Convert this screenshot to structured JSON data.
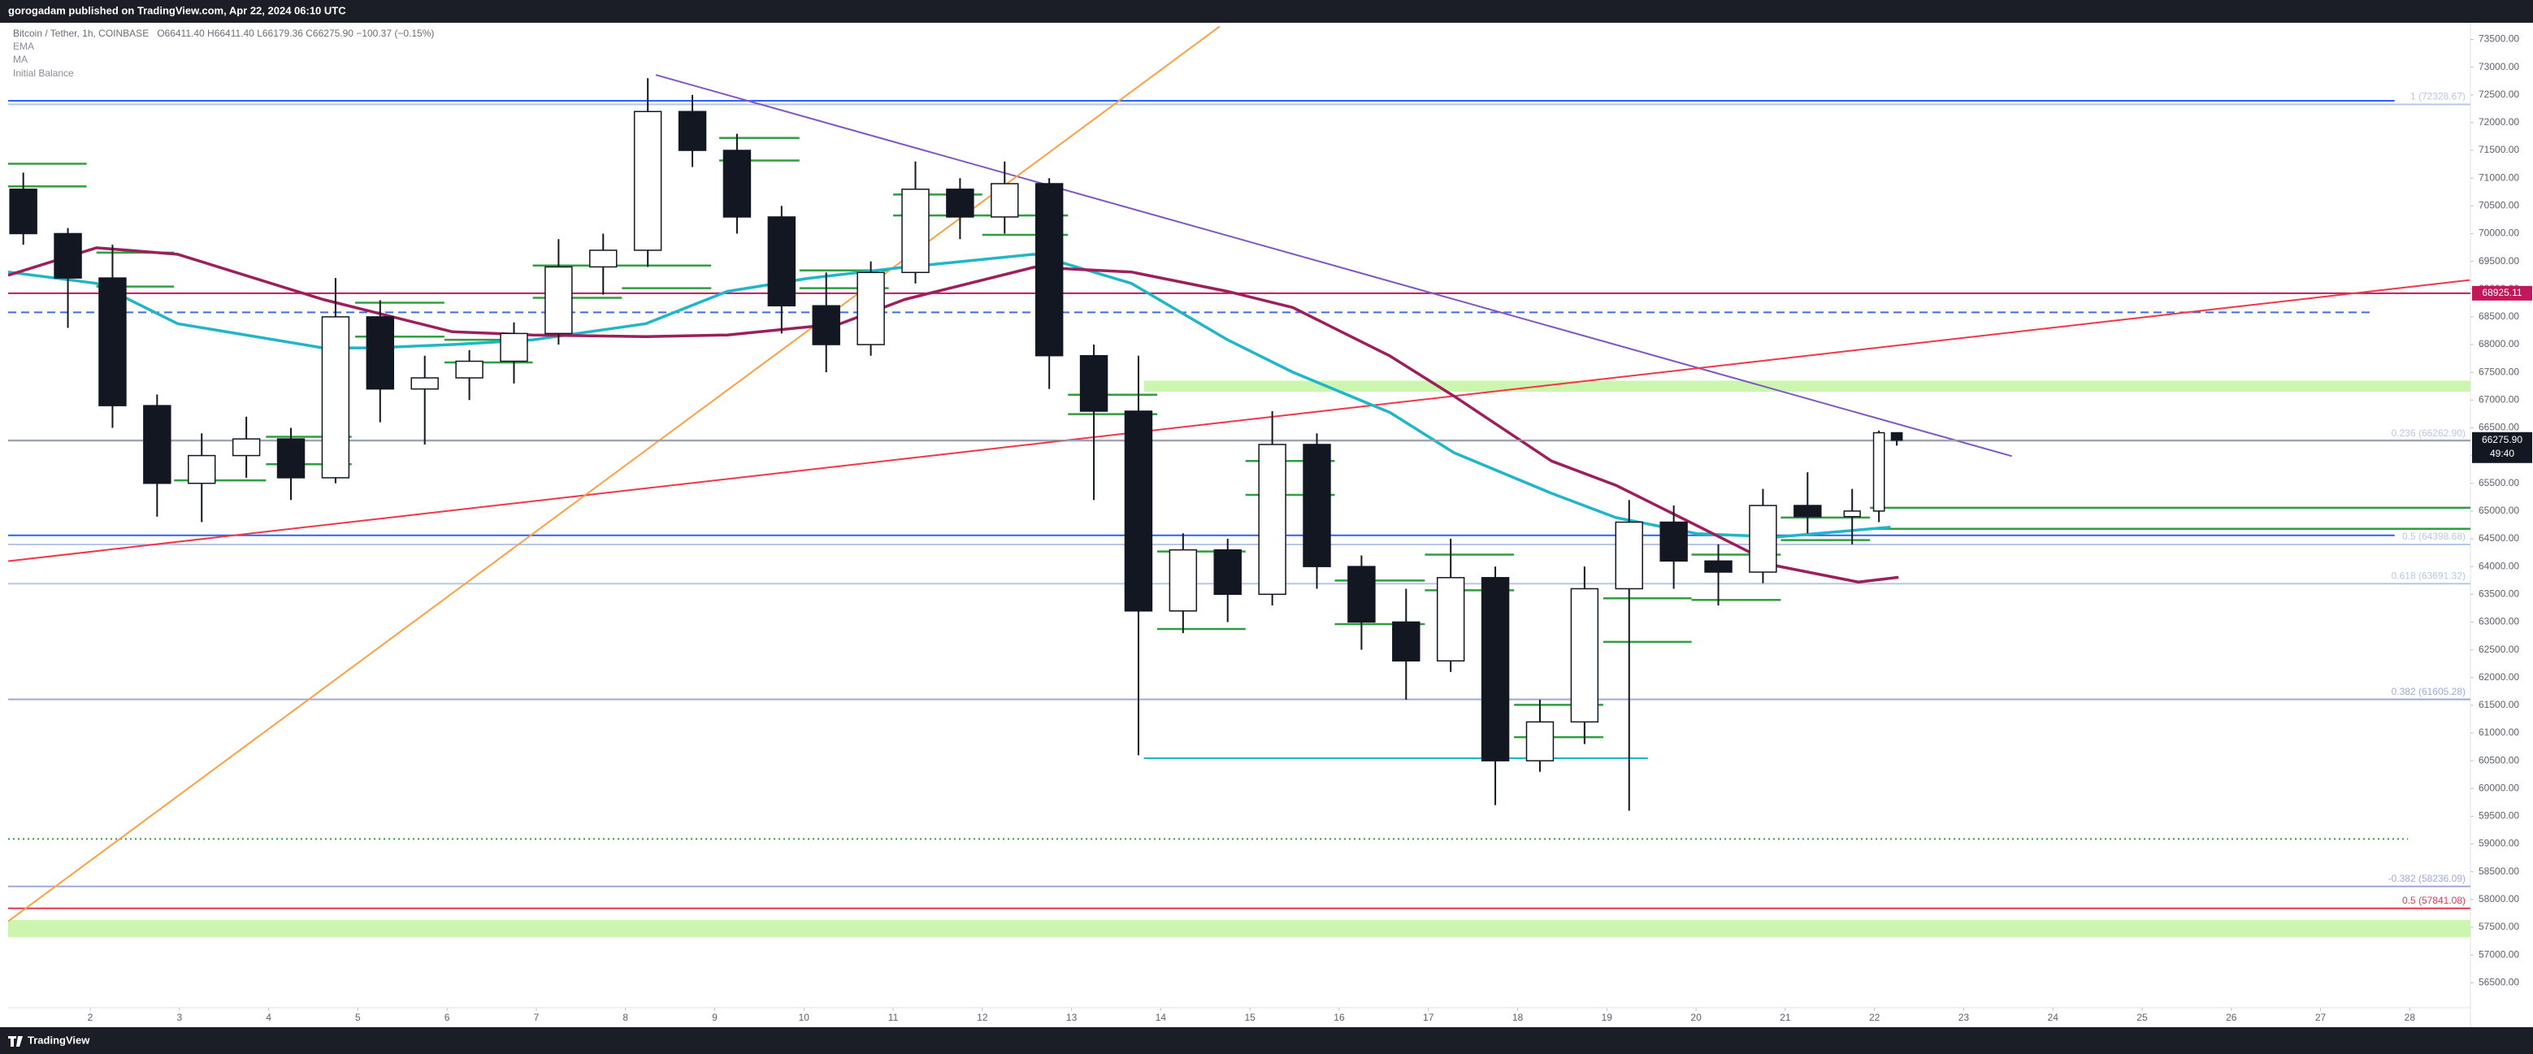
{
  "header": {
    "text": "gorogadam published on TradingView.com, Apr 22, 2024 06:10 UTC"
  },
  "footer": {
    "brand": "TradingView"
  },
  "chart_data": {
    "type": "candlestick",
    "title": "Bitcoin / Tether, 1h, COINBASE",
    "subtitle": "O66411.40 H66411.40 L66179.36 C66275.90 −100.37 (−0.15%)",
    "candle_colors": {
      "up": "#ffffff",
      "down": "#131722",
      "border": "#131722"
    },
    "x": [
      1.25,
      1.75,
      2.25,
      2.75,
      3.25,
      3.75,
      4.25,
      4.75,
      5.25,
      5.75,
      6.25,
      6.75,
      7.25,
      7.75,
      8.25,
      8.75,
      9.25,
      9.75,
      10.25,
      10.75,
      11.25,
      11.75,
      12.25,
      12.75,
      13.25,
      13.75,
      14.25,
      14.75,
      15.25,
      15.75,
      16.25,
      16.75,
      17.25,
      17.75,
      18.25,
      18.75,
      19.25,
      19.75,
      20.25,
      20.75,
      21.25,
      21.75,
      22.05,
      22.25
    ],
    "open": [
      70800,
      70000,
      69200,
      66900,
      65500,
      66000,
      66300,
      65600,
      68500,
      67200,
      67400,
      67700,
      68200,
      69400,
      69700,
      72200,
      71500,
      70300,
      68700,
      68000,
      69300,
      70800,
      70300,
      70900,
      67800,
      66800,
      63200,
      64300,
      63500,
      66200,
      64000,
      63000,
      62300,
      63800,
      60500,
      61200,
      63600,
      64800,
      64100,
      63900,
      65100,
      64900,
      65000,
      66411.4
    ],
    "high": [
      71100,
      70100,
      69800,
      67100,
      66400,
      66700,
      66500,
      69200,
      68800,
      67800,
      67900,
      68400,
      69900,
      70000,
      72800,
      72500,
      71800,
      70500,
      69300,
      69500,
      71300,
      71000,
      71300,
      71000,
      68000,
      67800,
      64600,
      64500,
      66800,
      66400,
      64200,
      63600,
      64500,
      64000,
      61600,
      64000,
      65200,
      65100,
      64400,
      65400,
      65700,
      65400,
      66450,
      66411.4
    ],
    "low": [
      69800,
      68300,
      66500,
      64900,
      64800,
      65600,
      65200,
      65500,
      66600,
      66200,
      67000,
      67300,
      68000,
      68900,
      69400,
      71200,
      70000,
      68200,
      67500,
      67800,
      69100,
      69900,
      70000,
      67200,
      65200,
      60600,
      62800,
      63000,
      63300,
      63600,
      62500,
      61600,
      62100,
      59700,
      60300,
      60800,
      59600,
      63600,
      63300,
      63700,
      64600,
      64400,
      64800,
      66179.36
    ],
    "close": [
      70000,
      69200,
      66900,
      65500,
      66000,
      66300,
      65600,
      68500,
      67200,
      67400,
      67700,
      68200,
      69400,
      69700,
      72200,
      71500,
      70300,
      68700,
      68000,
      69300,
      70800,
      70300,
      70900,
      67800,
      66800,
      63200,
      64300,
      63500,
      66200,
      64000,
      63000,
      62300,
      63800,
      60500,
      61200,
      63600,
      64800,
      64100,
      63900,
      65100,
      64900,
      65000,
      66411.4,
      66275.9
    ],
    "last_price_label": "66275.90",
    "countdown": "49:40",
    "series": [
      {
        "name": "EMA",
        "color": "#1fb6c9",
        "x": [
          1.08,
          2.07,
          2.98,
          4.61,
          5.15,
          6.06,
          6.96,
          8.23,
          9.14,
          10.04,
          11.13,
          12.58,
          13.67,
          14.75,
          15.48,
          16.57,
          17.29,
          18.38,
          19.1,
          20.01,
          20.91,
          22.18
        ],
        "values": [
          69308,
          69104,
          68377,
          67940,
          67940,
          68000,
          68086,
          68377,
          68959,
          69192,
          69395,
          69628,
          69104,
          68086,
          67503,
          66776,
          66048,
          65320,
          64883,
          64592,
          64534,
          64709
        ]
      },
      {
        "name": "MA",
        "color": "#9c1f5c",
        "x": [
          1.08,
          2.07,
          2.98,
          4.61,
          6.06,
          6.96,
          8.23,
          9.14,
          10.41,
          11.13,
          12.58,
          13.67,
          14.75,
          15.48,
          16.57,
          17.29,
          18.38,
          19.1,
          20.01,
          20.91,
          21.82,
          22.27
        ],
        "values": [
          69250,
          69745,
          69628,
          68813,
          68231,
          68173,
          68144,
          68173,
          68377,
          68813,
          69395,
          69308,
          68959,
          68668,
          67794,
          67067,
          65902,
          65466,
          64738,
          64010,
          63719,
          63806
        ]
      }
    ],
    "initial_balance": {
      "name": "Initial Balance",
      "color": "#2e9e3e",
      "segments": [
        {
          "x": [
            1.08,
            1.96
          ],
          "value": 71259
        },
        {
          "x": [
            1.08,
            1.96
          ],
          "value": 70851
        },
        {
          "x": [
            2.07,
            2.94
          ],
          "value": 69657
        },
        {
          "x": [
            2.07,
            2.94
          ],
          "value": 69046
        },
        {
          "x": [
            2.94,
            3.97
          ],
          "value": 65553
        },
        {
          "x": [
            3.97,
            4.93
          ],
          "value": 66339
        },
        {
          "x": [
            3.97,
            4.93
          ],
          "value": 65844
        },
        {
          "x": [
            4.97,
            5.97
          ],
          "value": 68755
        },
        {
          "x": [
            4.97,
            5.97
          ],
          "value": 68144
        },
        {
          "x": [
            5.97,
            6.96
          ],
          "value": 68086
        },
        {
          "x": [
            5.97,
            6.96
          ],
          "value": 67678
        },
        {
          "x": [
            6.96,
            7.96
          ],
          "value": 68842
        },
        {
          "x": [
            6.96,
            8.96
          ],
          "value": 69425
        },
        {
          "x": [
            7.96,
            8.96
          ],
          "value": 69017
        },
        {
          "x": [
            9.05,
            9.95
          ],
          "value": 71724
        },
        {
          "x": [
            9.05,
            9.95
          ],
          "value": 71317
        },
        {
          "x": [
            9.95,
            10.95
          ],
          "value": 69337
        },
        {
          "x": [
            9.95,
            10.95
          ],
          "value": 69017
        },
        {
          "x": [
            11.0,
            12.0
          ],
          "value": 70705
        },
        {
          "x": [
            11.0,
            12.0
          ],
          "value": 70327
        },
        {
          "x": [
            12.0,
            12.96
          ],
          "value": 70327
        },
        {
          "x": [
            12.0,
            12.96
          ],
          "value": 69978
        },
        {
          "x": [
            12.96,
            13.96
          ],
          "value": 67096
        },
        {
          "x": [
            12.96,
            13.96
          ],
          "value": 66746
        },
        {
          "x": [
            13.96,
            14.95
          ],
          "value": 64272
        },
        {
          "x": [
            13.96,
            14.95
          ],
          "value": 62875
        },
        {
          "x": [
            14.95,
            15.95
          ],
          "value": 65902
        },
        {
          "x": [
            14.95,
            15.95
          ],
          "value": 65291
        },
        {
          "x": [
            15.95,
            16.96
          ],
          "value": 63748
        },
        {
          "x": [
            15.95,
            16.96
          ],
          "value": 62962
        },
        {
          "x": [
            16.96,
            17.96
          ],
          "value": 64214
        },
        {
          "x": [
            16.96,
            17.96
          ],
          "value": 63573
        },
        {
          "x": [
            17.96,
            18.96
          ],
          "value": 61507
        },
        {
          "x": [
            17.96,
            18.96
          ],
          "value": 60925
        },
        {
          "x": [
            18.96,
            19.95
          ],
          "value": 63428
        },
        {
          "x": [
            18.96,
            19.95
          ],
          "value": 62642
        },
        {
          "x": [
            19.95,
            20.95
          ],
          "value": 64214
        },
        {
          "x": [
            19.95,
            20.95
          ],
          "value": 63399
        },
        {
          "x": [
            20.95,
            21.95
          ],
          "value": 64883
        },
        {
          "x": [
            20.95,
            21.95
          ],
          "value": 64476
        },
        {
          "x": [
            21.95,
            28.68
          ],
          "value": 65058
        },
        {
          "x": [
            21.95,
            28.68
          ],
          "value": 64679
        }
      ]
    },
    "levels": [
      {
        "value": 72394,
        "color": "#2962ff",
        "style": "solid",
        "x": [
          1.08,
          27.83
        ]
      },
      {
        "value": 72328.67,
        "color": "#b7c6ea",
        "style": "solid",
        "label": "1 (72328.67)"
      },
      {
        "value": 66262.9,
        "color": "#b7c6ea",
        "style": "solid",
        "label": "0.236 (66262.90)"
      },
      {
        "value": 64398.68,
        "color": "#b7c6ea",
        "style": "solid",
        "label": "0.5 (64398.68)"
      },
      {
        "value": 63691.32,
        "color": "#b7c6ea",
        "style": "solid",
        "label": "0.618 (63691.32)"
      },
      {
        "value": 61605.28,
        "color": "#9fa8da",
        "style": "solid",
        "label": "0.382 (61605.28)"
      },
      {
        "value": 58236.09,
        "color": "#9fa8da",
        "style": "solid",
        "label": "-0.382 (58236.09)"
      },
      {
        "value": 57841.08,
        "color": "#e53950",
        "style": "solid",
        "label": "0.5 (57841.08)"
      },
      {
        "value": 64563,
        "color": "#2962ff",
        "style": "solid",
        "x": [
          1.08,
          27.83
        ]
      },
      {
        "value": 68580,
        "color": "#3d6ee0",
        "style": "dashed",
        "x": [
          1.08,
          27.6
        ]
      },
      {
        "value": 68925.11,
        "color": "#c2185b",
        "style": "solid",
        "price_tag": true
      },
      {
        "value": 59090,
        "color": "#2e9e3e",
        "style": "dotted",
        "x": [
          1.08,
          27.98
        ]
      },
      {
        "value": 60546,
        "color": "#1fb6c9",
        "style": "solid",
        "x": [
          13.81,
          19.46
        ]
      }
    ],
    "zones": [
      {
        "values": [
          67150,
          67350
        ],
        "x": [
          13.81,
          28.68
        ],
        "color": "#ccf5b0"
      },
      {
        "values": [
          57320,
          57630
        ],
        "color": "#ccf5b0"
      }
    ],
    "trendlines": [
      {
        "x": [
          8.34,
          23.54
        ],
        "values": [
          72860,
          65990
        ],
        "color": "#7e57c2"
      },
      {
        "x": [
          1.08,
          28.67
        ],
        "values": [
          64097,
          69163
        ],
        "color": "#f23645"
      },
      {
        "x": [
          1.08,
          14.66
        ],
        "values": [
          57606,
          73733
        ],
        "color": "#ff9f43"
      }
    ],
    "xlim": [
      1.08,
      28.68
    ],
    "ylim": [
      56050,
      73800
    ],
    "xticks": [
      2,
      3,
      4,
      5,
      6,
      7,
      8,
      9,
      10,
      11,
      12,
      13,
      14,
      15,
      16,
      17,
      18,
      19,
      20,
      21,
      22,
      23,
      24,
      25,
      26,
      27,
      28
    ],
    "yticks": [
      {
        "value": 56500,
        "label": "56500.00"
      },
      {
        "value": 57000,
        "label": "57000.00"
      },
      {
        "value": 57500,
        "label": "57500.00"
      },
      {
        "value": 58000,
        "label": "58000.00"
      },
      {
        "value": 58500,
        "label": "58500.00"
      },
      {
        "value": 59000,
        "label": "59000.00"
      },
      {
        "value": 59500,
        "label": "59500.00"
      },
      {
        "value": 60000,
        "label": "60000.00"
      },
      {
        "value": 60500,
        "label": "60500.00"
      },
      {
        "value": 61000,
        "label": "61000.00"
      },
      {
        "value": 61500,
        "label": "61500.00"
      },
      {
        "value": 62000,
        "label": "62000.00"
      },
      {
        "value": 62500,
        "label": "62500.00"
      },
      {
        "value": 63000,
        "label": "63000.00"
      },
      {
        "value": 63500,
        "label": "63500.00"
      },
      {
        "value": 64000,
        "label": "64000.00"
      },
      {
        "value": 64500,
        "label": "64500.00"
      },
      {
        "value": 65000,
        "label": "65000.00"
      },
      {
        "value": 65500,
        "label": "65500.00"
      },
      {
        "value": 66000,
        "label": "66000.00"
      },
      {
        "value": 66500,
        "label": "66500.00"
      },
      {
        "value": 67000,
        "label": "67000.00"
      },
      {
        "value": 67500,
        "label": "67500.00"
      },
      {
        "value": 68000,
        "label": "68000.00"
      },
      {
        "value": 68500,
        "label": "68500.00"
      },
      {
        "value": 69000,
        "label": "69000.00"
      },
      {
        "value": 69500,
        "label": "69500.00"
      },
      {
        "value": 70000,
        "label": "70000.00"
      },
      {
        "value": 70500,
        "label": "70500.00"
      },
      {
        "value": 71000,
        "label": "71000.00"
      },
      {
        "value": 71500,
        "label": "71500.00"
      },
      {
        "value": 72000,
        "label": "72000.00"
      },
      {
        "value": 72500,
        "label": "72500.00"
      },
      {
        "value": 73000,
        "label": "73000.00"
      },
      {
        "value": 73500,
        "label": "73500.00"
      }
    ]
  }
}
